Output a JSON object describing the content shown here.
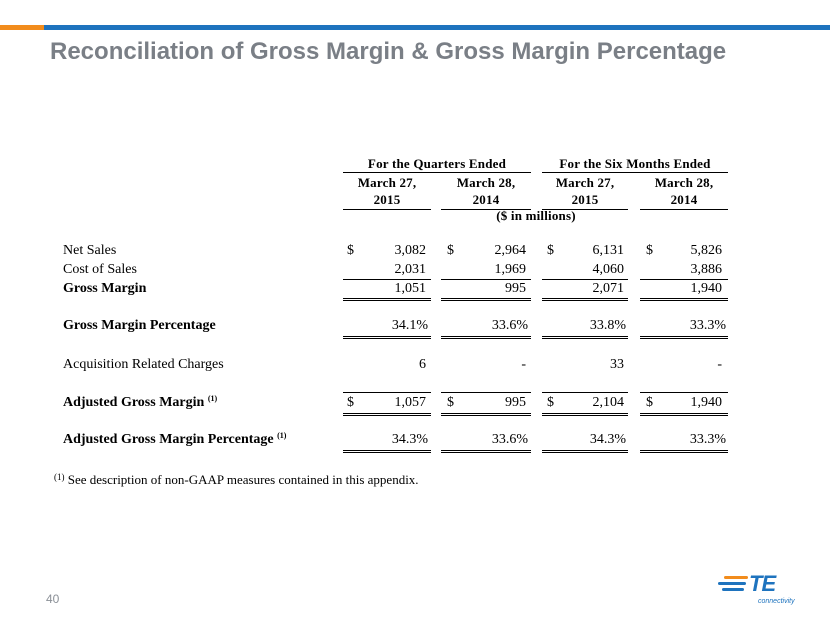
{
  "title": "Reconciliation of Gross Margin & Gross Margin Percentage",
  "header": {
    "group_quarters": "For the Quarters Ended",
    "group_six_months": "For the Six Months Ended",
    "columns": [
      {
        "line1": "March 27,",
        "line2": "2015"
      },
      {
        "line1": "March 28,",
        "line2": "2014"
      },
      {
        "line1": "March 27,",
        "line2": "2015"
      },
      {
        "line1": "March 28,",
        "line2": "2014"
      }
    ],
    "units": "($ in millions)"
  },
  "rows": {
    "net_sales": {
      "label": "Net Sales",
      "values": [
        "3,082",
        "2,964",
        "6,131",
        "5,826"
      ]
    },
    "cost_of_sales": {
      "label": "Cost of Sales",
      "values": [
        "2,031",
        "1,969",
        "4,060",
        "3,886"
      ]
    },
    "gross_margin": {
      "label": "Gross Margin",
      "values": [
        "1,051",
        "995",
        "2,071",
        "1,940"
      ]
    },
    "gross_margin_pct": {
      "label": "Gross Margin Percentage",
      "values": [
        "34.1%",
        "33.6%",
        "33.8%",
        "33.3%"
      ]
    },
    "acq_charges": {
      "label": "Acquisition Related Charges",
      "values": [
        "6",
        "-",
        "33",
        "-"
      ]
    },
    "adj_gross_margin": {
      "label": "Adjusted Gross Margin",
      "note": "(1)",
      "values": [
        "1,057",
        "995",
        "2,104",
        "1,940"
      ]
    },
    "adj_gross_margin_pct": {
      "label": "Adjusted Gross Margin Percentage",
      "note": "(1)",
      "values": [
        "34.3%",
        "33.6%",
        "34.3%",
        "33.3%"
      ]
    }
  },
  "currency_symbol": "$",
  "footnote": {
    "marker": "(1)",
    "text": "See description of non-GAAP measures contained in this appendix."
  },
  "page_number": "40",
  "logo": {
    "text": "TE",
    "subtext": "connectivity"
  },
  "colors": {
    "title": "#7a7f86",
    "bar_orange": "#f28c1c",
    "bar_blue": "#1e73be"
  }
}
